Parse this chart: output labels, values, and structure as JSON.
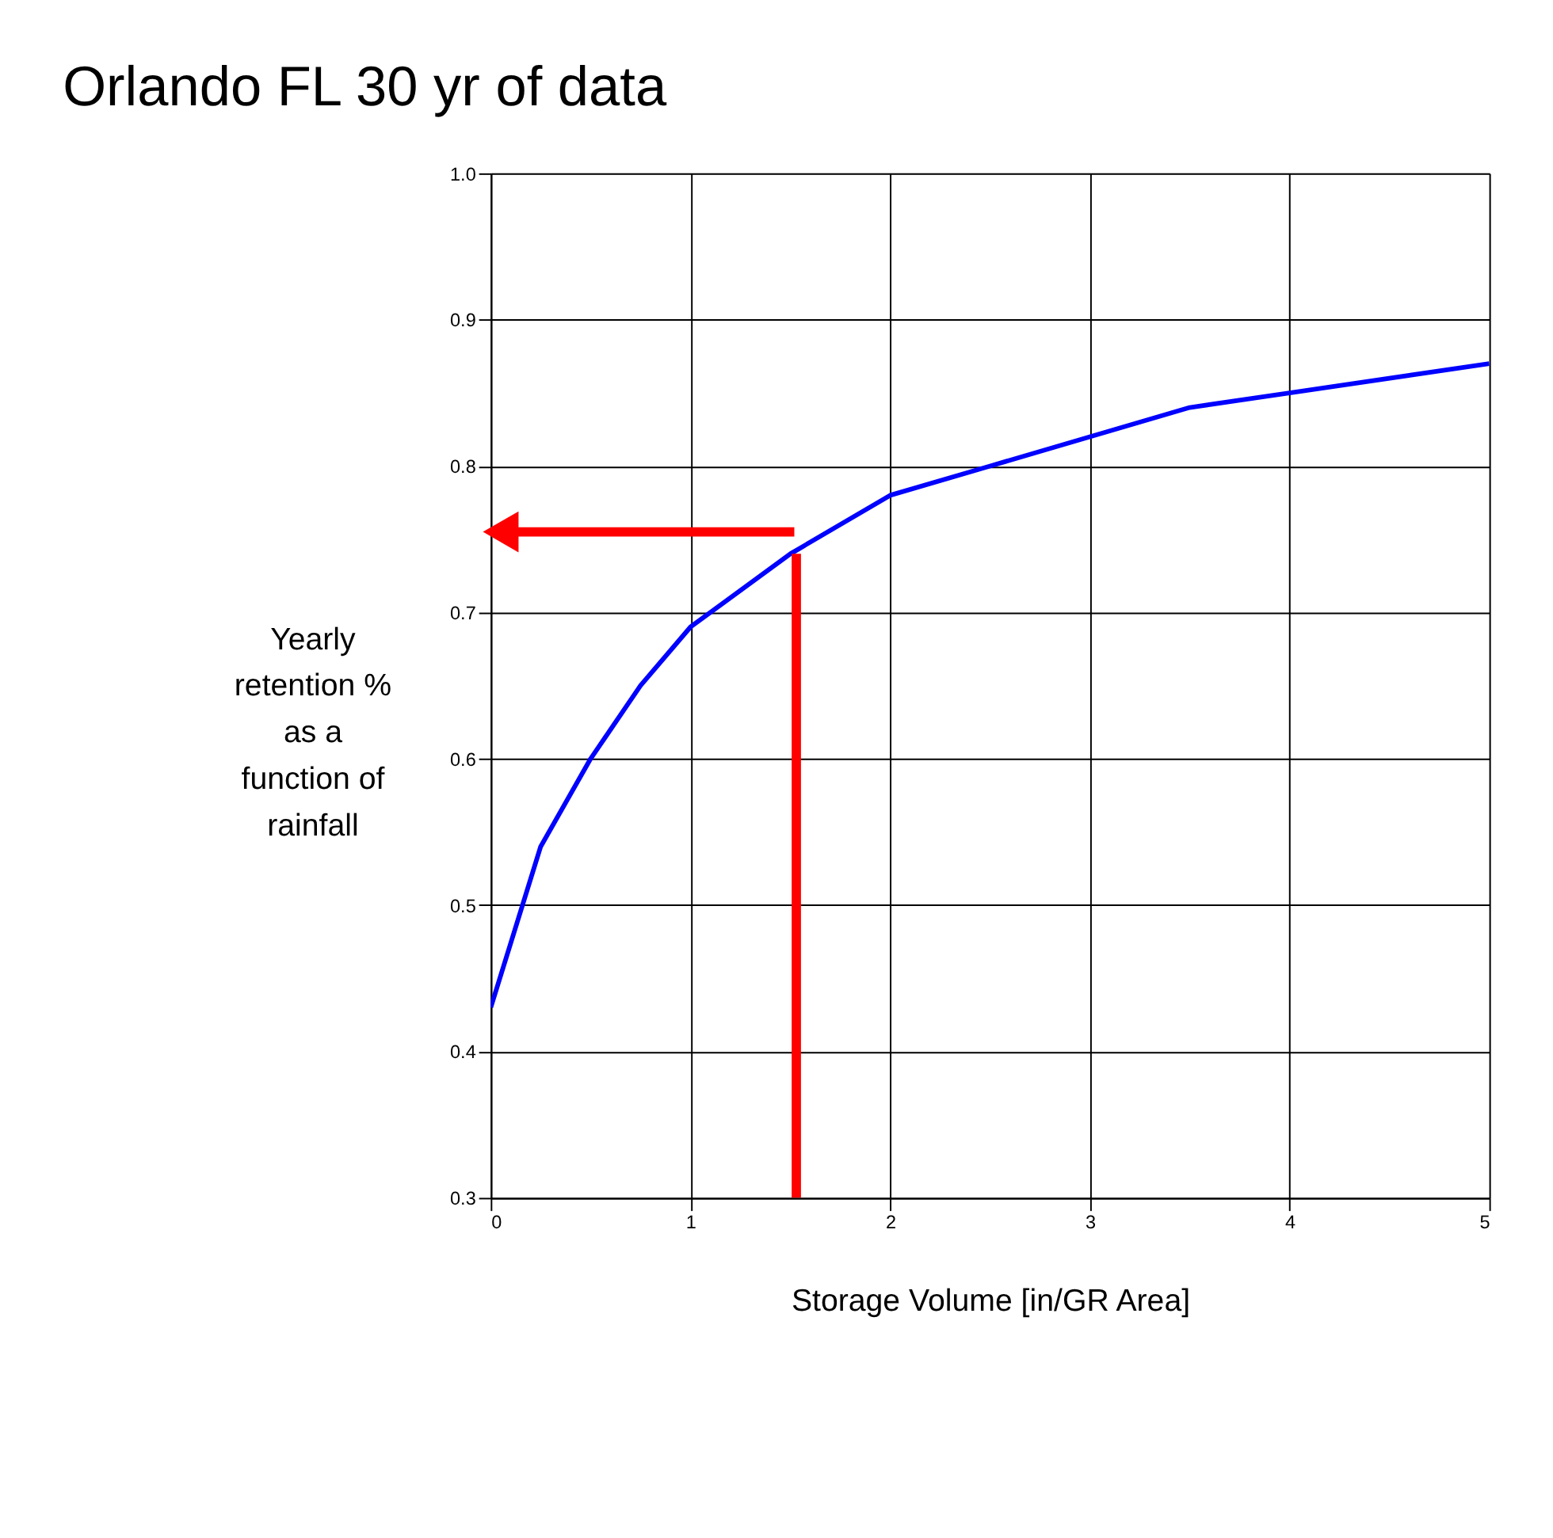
{
  "chart_data": {
    "type": "line",
    "title": "Orlando FL 30 yr of data",
    "xlabel": "Storage Volume [in/GR Area]",
    "ylabel": "Yearly\nretention %\nas a\nfunction of\nrainfall",
    "xlim": [
      0,
      5
    ],
    "xticks": [
      0,
      1,
      2,
      3,
      4,
      5
    ],
    "ylim": [
      0.3,
      1.0
    ],
    "yticks": [
      {
        "value": 0.3,
        "label": "0.3"
      },
      {
        "value": 0.4,
        "label": "0.4"
      },
      {
        "value": 0.5,
        "label": "0.5"
      },
      {
        "value": 0.6,
        "label": "0.6"
      },
      {
        "value": 0.7,
        "label": "0.7"
      },
      {
        "value": 0.8,
        "label": "0.8"
      },
      {
        "value": 0.9,
        "label": "0.9"
      },
      {
        "value": 1.0,
        "label": "1.0"
      }
    ],
    "grid": true,
    "marker": "none",
    "line_style": "solid",
    "series": [
      {
        "color": "#0000ff",
        "x": [
          0,
          0.25,
          0.5,
          0.75,
          1,
          1.5,
          2,
          2.5,
          2.75,
          3,
          3.5,
          4,
          5
        ],
        "values": [
          0.43,
          0.54,
          0.6,
          0.65,
          0.69,
          0.74,
          0.78,
          0.8,
          0.81,
          0.82,
          0.84,
          0.85,
          0.87
        ]
      },
      {
        "color": "#ff0000",
        "x": [
          1.53,
          1.53
        ],
        "values": [
          0.3,
          0.74
        ]
      },
      {
        "color": "#ff0000",
        "x": [
          1.52,
          0.05
        ],
        "values": [
          0.755,
          0.755
        ],
        "marker": "triangle"
      }
    ]
  }
}
